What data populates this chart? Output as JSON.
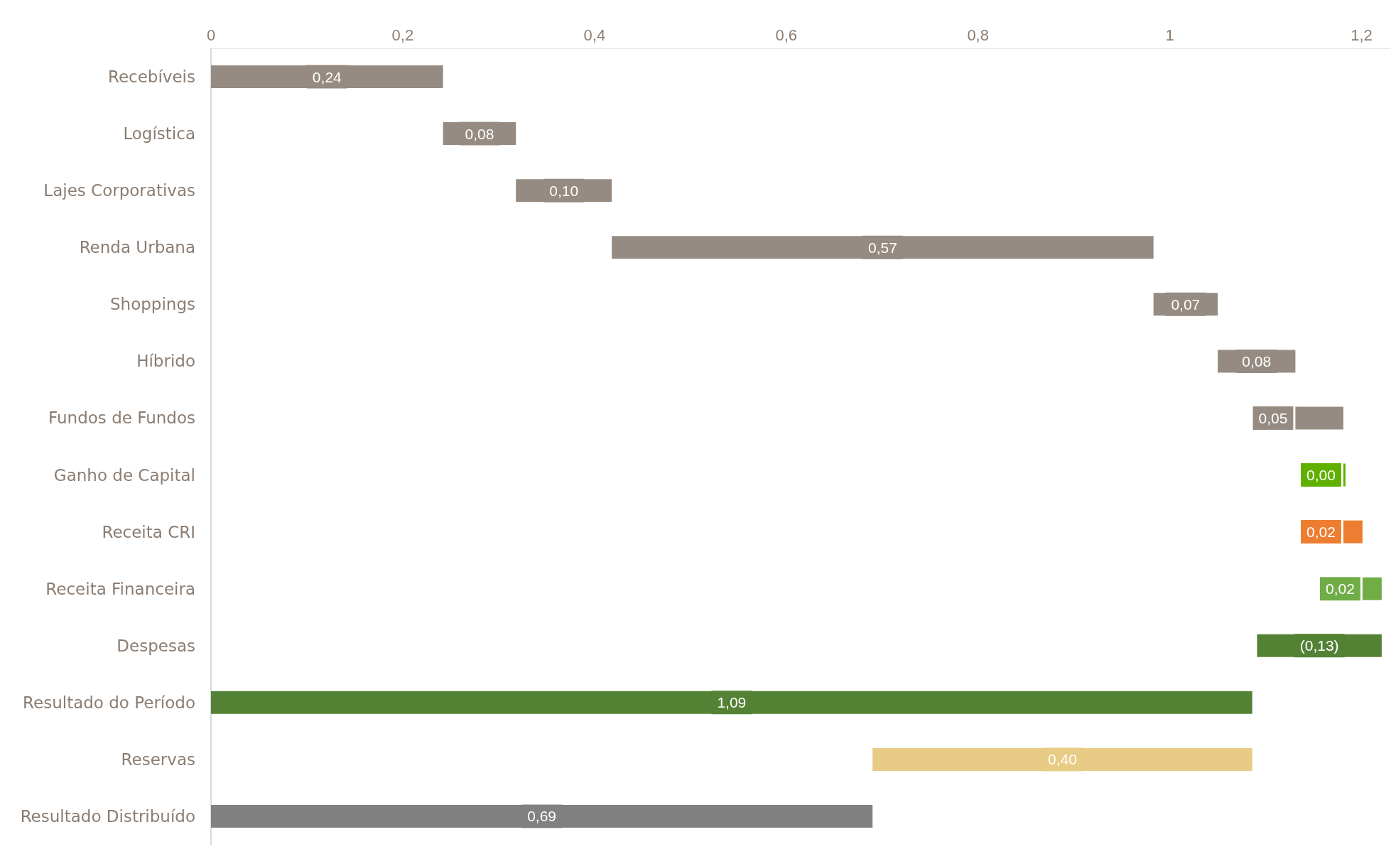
{
  "chart_data": {
    "type": "bar",
    "orientation": "horizontal",
    "categories": [
      "Recebíveis",
      "Logística",
      "Lajes Corporativas",
      "Renda Urbana",
      "Shoppings",
      "Híbrido",
      "Fundos de Fundos",
      "Ganho de Capital",
      "Receita CRI",
      "Receita Financeira",
      "Despesas",
      "Resultado do Período",
      "Reservas",
      "Resultado Distribuído"
    ],
    "base": [
      0,
      0.242,
      0.318,
      0.418,
      0.983,
      1.05,
      1.131,
      1.181,
      1.181,
      1.201,
      1.221,
      0,
      0.69,
      0
    ],
    "values": [
      0.242,
      0.076,
      0.1,
      0.565,
      0.067,
      0.081,
      0.05,
      0,
      0.02,
      0.02,
      -0.13,
      1.086,
      0.396,
      0.69
    ],
    "value_labels": [
      "0,24",
      "0,08",
      "0,10",
      "0,57",
      "0,07",
      "0,08",
      "0,05",
      "0,00",
      "0,02",
      "0,02",
      "(0,13)",
      "1,09",
      "0,40",
      "0,69"
    ],
    "colors": [
      "#968b82",
      "#968b82",
      "#968b82",
      "#968b82",
      "#968b82",
      "#968b82",
      "#968b82",
      "#5fb000",
      "#ed7d31",
      "#70ad47",
      "#548235",
      "#548235",
      "#e8cb84",
      "#808080"
    ],
    "xlim": [
      0,
      1.23
    ],
    "xticks": [
      0,
      {
        "value": 0.2,
        "label": "0,2"
      },
      {
        "value": 0.4,
        "label": "0,4"
      },
      {
        "value": 0.6,
        "label": "0,6"
      },
      {
        "value": 0.8,
        "label": "0,8"
      },
      1,
      {
        "value": 1.2,
        "label": "1,2"
      }
    ]
  }
}
